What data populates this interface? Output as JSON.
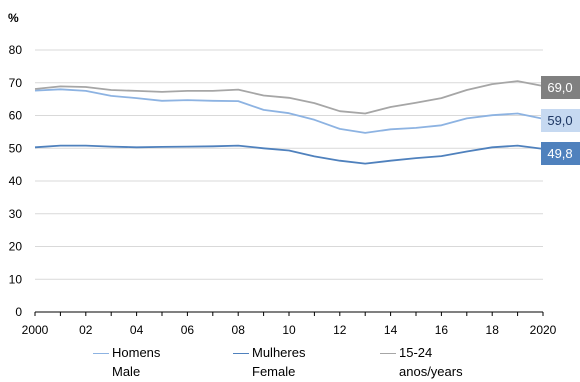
{
  "chart_data": {
    "type": "line",
    "ylabel": "%",
    "ylim": [
      0,
      80
    ],
    "yticks": [
      "0",
      "10",
      "20",
      "30",
      "40",
      "50",
      "60",
      "70",
      "80"
    ],
    "x": [
      2000,
      2001,
      2002,
      2003,
      2004,
      2005,
      2006,
      2007,
      2008,
      2009,
      2010,
      2011,
      2012,
      2013,
      2014,
      2015,
      2016,
      2017,
      2018,
      2019,
      2020
    ],
    "xtick_labels": [
      "2000",
      "02",
      "04",
      "06",
      "08",
      "10",
      "12",
      "14",
      "16",
      "18",
      "2020"
    ],
    "grid": "horizontal",
    "series": [
      {
        "name": "Homens",
        "name_en": "Male",
        "color": "#8db3e2",
        "values": [
          67.6,
          68.0,
          67.5,
          66.0,
          65.3,
          64.5,
          64.7,
          64.5,
          64.4,
          61.7,
          60.7,
          58.7,
          55.9,
          54.7,
          55.8,
          56.2,
          57.0,
          59.1,
          60.1,
          60.6,
          59.0
        ],
        "end_label": "59,0"
      },
      {
        "name": "Mulheres",
        "name_en": "Female",
        "color": "#4f81bd",
        "values": [
          50.3,
          50.8,
          50.8,
          50.5,
          50.3,
          50.4,
          50.5,
          50.6,
          50.8,
          50.0,
          49.3,
          47.5,
          46.2,
          45.3,
          46.2,
          47.0,
          47.6,
          49.0,
          50.3,
          50.8,
          49.8
        ],
        "end_label": "49,8"
      },
      {
        "name": "15-24",
        "name_en": "anos/years",
        "color": "#a6a6a6",
        "values": [
          68.1,
          68.9,
          68.7,
          67.8,
          67.5,
          67.2,
          67.5,
          67.5,
          67.9,
          66.1,
          65.4,
          63.8,
          61.3,
          60.6,
          62.6,
          63.9,
          65.3,
          67.8,
          69.6,
          70.5,
          69.0
        ],
        "end_label": "69,0"
      }
    ],
    "end_label_colors": [
      "#c6d9f1",
      "#4f81bd",
      "#808080"
    ]
  },
  "legend": [
    {
      "label": "Homens",
      "sub": "Male",
      "color": "#8db3e2"
    },
    {
      "label": "Mulheres",
      "sub": "Female",
      "color": "#4f81bd"
    },
    {
      "label": "15-24",
      "sub": "anos/years",
      "color": "#a6a6a6"
    }
  ]
}
